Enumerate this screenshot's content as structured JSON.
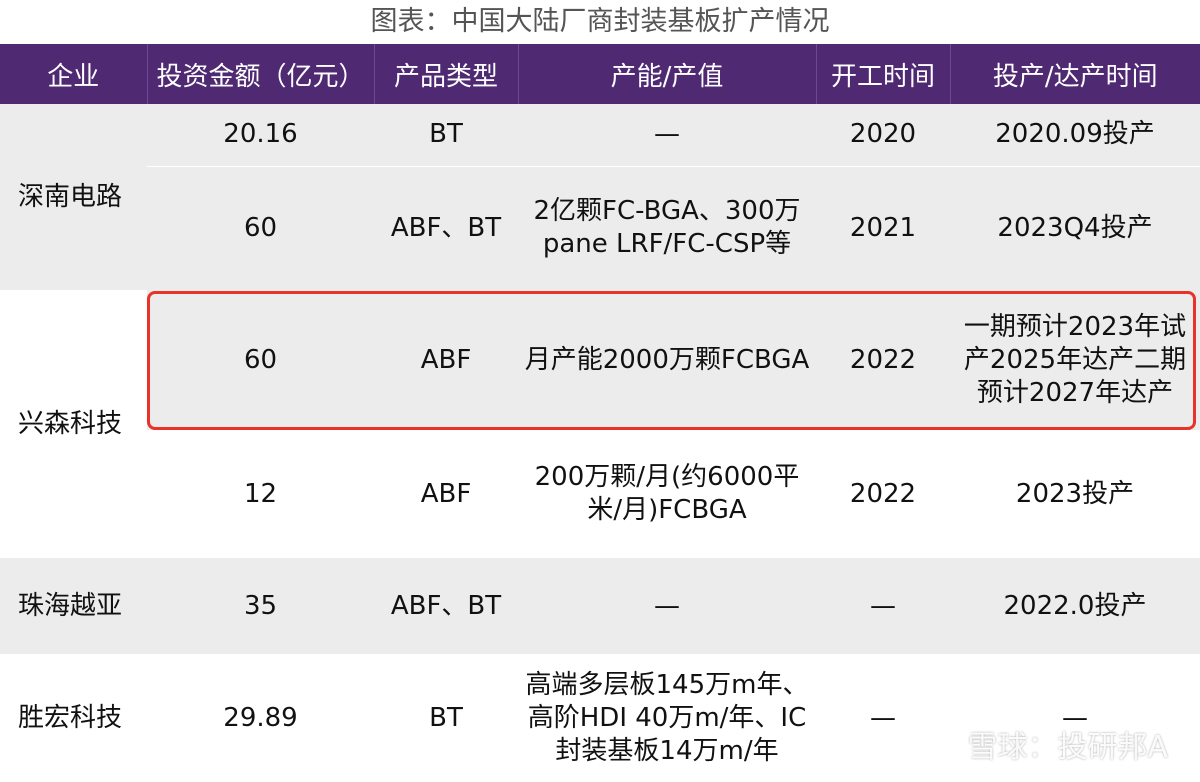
{
  "title": "图表：中国大陆厂商封装基板扩产情况",
  "headers": [
    "企业",
    "投资金额（亿元）",
    "产品类型",
    "产能/产值",
    "开工时间",
    "投产/达产时间"
  ],
  "rows": [
    {
      "company": "深南电路",
      "investment": "20.16",
      "product": "BT",
      "capacity": "—",
      "start": "2020",
      "production": "2020.09投产"
    },
    {
      "company": "",
      "investment": "60",
      "product": "ABF、BT",
      "capacity": "2亿颗FC-BGA、300万pane LRF/FC-CSP等",
      "start": "2021",
      "production": "2023Q4投产"
    },
    {
      "company": "兴森科技",
      "investment": "60",
      "product": "ABF",
      "capacity": "月产能2000万颗FCBGA",
      "start": "2022",
      "production": "一期预计2023年试产2025年达产二期预计2027年达产"
    },
    {
      "company": "",
      "investment": "12",
      "product": "ABF",
      "capacity": "200万颗/月(约6000平米/月)FCBGA",
      "start": "2022",
      "production": "2023投产"
    },
    {
      "company": "珠海越亚",
      "investment": "35",
      "product": "ABF、BT",
      "capacity": "—",
      "start": "—",
      "production": "2022.0投产"
    },
    {
      "company": "胜宏科技",
      "investment": "29.89",
      "product": "BT",
      "capacity": "高端多层板145万m年、高阶HDI 40万m/年、IC封装基板14万m/年",
      "start": "—",
      "production": "—"
    }
  ],
  "watermark": {
    "icon": "snowball-icon",
    "text": "雪球：投研邦A"
  },
  "colors": {
    "header_bg": "#4f2a73",
    "highlight": "#e8322a",
    "row_shade": "#ececec"
  }
}
